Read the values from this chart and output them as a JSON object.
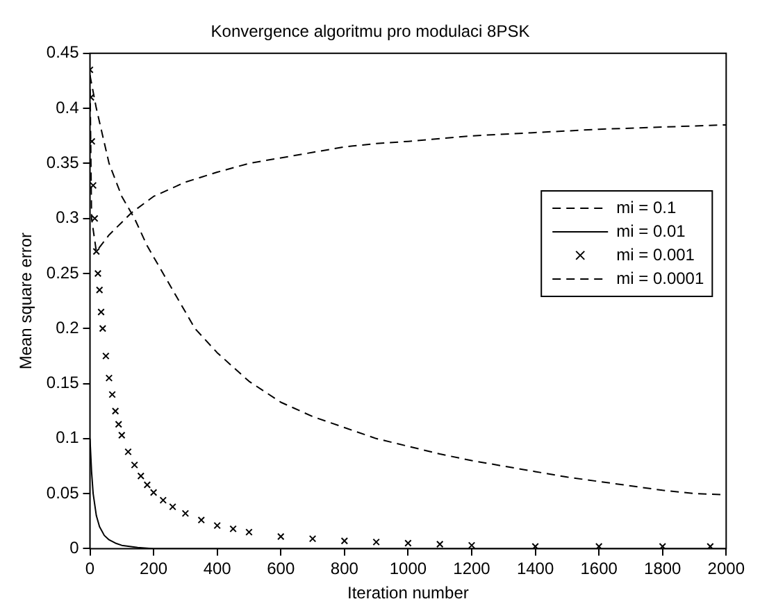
{
  "chart_data": {
    "type": "line",
    "title": "Konvergence algoritmu pro modulaci 8PSK",
    "xlabel": "Iteration number",
    "ylabel": "Mean square error",
    "xlim": [
      0,
      2000
    ],
    "ylim": [
      0,
      0.45
    ],
    "xticks": [
      0,
      200,
      400,
      600,
      800,
      1000,
      1200,
      1400,
      1600,
      1800,
      2000
    ],
    "yticks": [
      0,
      0.05,
      0.1,
      0.15,
      0.2,
      0.25,
      0.3,
      0.35,
      0.4,
      0.45
    ],
    "grid": false,
    "legend": "right",
    "series": [
      {
        "name": "mi = 0.1",
        "color": "#000000",
        "line_style": "dashed",
        "marker": "none",
        "x": [
          0,
          5,
          20,
          60,
          130,
          200,
          300,
          400,
          500,
          600,
          700,
          800,
          900,
          1000,
          1200,
          1400,
          1600,
          1800,
          2000
        ],
        "values": [
          0.43,
          0.3,
          0.27,
          0.285,
          0.305,
          0.32,
          0.333,
          0.342,
          0.35,
          0.355,
          0.36,
          0.365,
          0.368,
          0.37,
          0.375,
          0.378,
          0.381,
          0.383,
          0.385
        ]
      },
      {
        "name": "mi = 0.01",
        "color": "#000000",
        "line_style": "solid",
        "marker": "none",
        "x": [
          0,
          5,
          10,
          20,
          30,
          45,
          60,
          80,
          100,
          150,
          200,
          400,
          2000
        ],
        "values": [
          0.1,
          0.07,
          0.05,
          0.03,
          0.02,
          0.012,
          0.008,
          0.005,
          0.003,
          0.001,
          0,
          0,
          0
        ]
      },
      {
        "name": "mi = 0.001",
        "color": "#000000",
        "type": "scatter",
        "marker": "cross",
        "x": [
          0,
          3,
          6,
          10,
          15,
          20,
          25,
          30,
          35,
          40,
          50,
          60,
          70,
          80,
          90,
          100,
          120,
          140,
          160,
          180,
          200,
          230,
          260,
          300,
          350,
          400,
          450,
          500,
          600,
          700,
          800,
          900,
          1000,
          1100,
          1200,
          1400,
          1600,
          1800,
          1950
        ],
        "values": [
          0.435,
          0.41,
          0.37,
          0.33,
          0.3,
          0.27,
          0.25,
          0.235,
          0.215,
          0.2,
          0.175,
          0.155,
          0.14,
          0.125,
          0.113,
          0.103,
          0.088,
          0.076,
          0.066,
          0.058,
          0.051,
          0.044,
          0.038,
          0.032,
          0.026,
          0.021,
          0.018,
          0.015,
          0.011,
          0.009,
          0.007,
          0.006,
          0.005,
          0.004,
          0.003,
          0.002,
          0.002,
          0.002,
          0.002
        ]
      },
      {
        "name": "mi = 0.0001",
        "color": "#000000",
        "line_style": "dashed",
        "marker": "none",
        "x": [
          0,
          20,
          40,
          60,
          100,
          140,
          180,
          230,
          280,
          330,
          400,
          500,
          600,
          700,
          800,
          900,
          1000,
          1100,
          1200,
          1300,
          1400,
          1500,
          1600,
          1700,
          1800,
          1900,
          2000
        ],
        "values": [
          0.43,
          0.4,
          0.375,
          0.35,
          0.32,
          0.3,
          0.275,
          0.25,
          0.225,
          0.2,
          0.178,
          0.152,
          0.133,
          0.12,
          0.11,
          0.1,
          0.093,
          0.086,
          0.08,
          0.075,
          0.07,
          0.065,
          0.061,
          0.057,
          0.053,
          0.05,
          0.049
        ]
      }
    ]
  }
}
